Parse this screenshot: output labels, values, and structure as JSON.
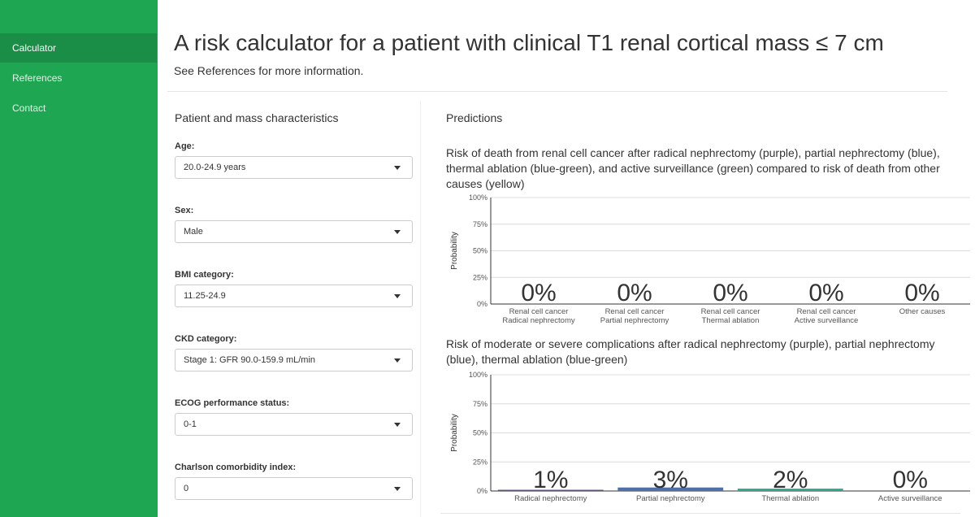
{
  "sidebar": {
    "items": [
      {
        "label": "Calculator",
        "active": true
      },
      {
        "label": "References",
        "active": false
      },
      {
        "label": "Contact",
        "active": false
      }
    ]
  },
  "header": {
    "title": "A risk calculator for a patient with clinical T1 renal cortical mass ≤ 7 cm",
    "subtitle": "See References for more information."
  },
  "inputs": {
    "title": "Patient and mass characteristics",
    "fields": [
      {
        "label": "Age:",
        "value": "20.0-24.9 years"
      },
      {
        "label": "Sex:",
        "value": "Male"
      },
      {
        "label": "BMI category:",
        "value": "11.25-24.9"
      },
      {
        "label": "CKD category:",
        "value": "Stage 1: GFR 90.0-159.9 mL/min"
      },
      {
        "label": "ECOG performance status:",
        "value": "0-1"
      },
      {
        "label": "Charlson comorbidity index:",
        "value": "0"
      }
    ]
  },
  "predictions": {
    "title": "Predictions"
  },
  "chart_data": [
    {
      "type": "bar",
      "title": "Risk of death from renal cell cancer after radical nephrectomy (purple), partial nephrectomy (blue), thermal ablation (blue-green), and active surveillance (green) compared to risk of death from other causes (yellow)",
      "ylabel": "Probability",
      "ylim": [
        0,
        100
      ],
      "yticks": [
        "0%",
        "25%",
        "50%",
        "75%",
        "100%"
      ],
      "grid": true,
      "categories": [
        [
          "Renal cell cancer",
          "Radical nephrectomy"
        ],
        [
          "Renal cell cancer",
          "Partial nephrectomy"
        ],
        [
          "Renal cell cancer",
          "Thermal ablation"
        ],
        [
          "Renal cell cancer",
          "Active surveillance"
        ],
        [
          "Other causes"
        ]
      ],
      "values": [
        0,
        0,
        0,
        0,
        0
      ],
      "data_labels": [
        "0%",
        "0%",
        "0%",
        "0%",
        "0%"
      ],
      "colors": [
        "#6a51a3",
        "#4f6fa8",
        "#2ca58d",
        "#2ca25f",
        "#e6c229"
      ]
    },
    {
      "type": "bar",
      "title": "Risk of moderate or severe complications after radical nephrectomy (purple), partial nephrectomy (blue), thermal ablation (blue-green)",
      "ylabel": "Probability",
      "ylim": [
        0,
        100
      ],
      "yticks": [
        "0%",
        "25%",
        "50%",
        "75%",
        "100%"
      ],
      "grid": true,
      "categories": [
        [
          "Radical nephrectomy"
        ],
        [
          "Partial nephrectomy"
        ],
        [
          "Thermal ablation"
        ],
        [
          "Active surveillance"
        ]
      ],
      "values": [
        1,
        3,
        2,
        0
      ],
      "data_labels": [
        "1%",
        "3%",
        "2%",
        "0%"
      ],
      "colors": [
        "#5a4a8c",
        "#4f6fa8",
        "#2ca58d",
        "#2ca25f"
      ]
    }
  ]
}
